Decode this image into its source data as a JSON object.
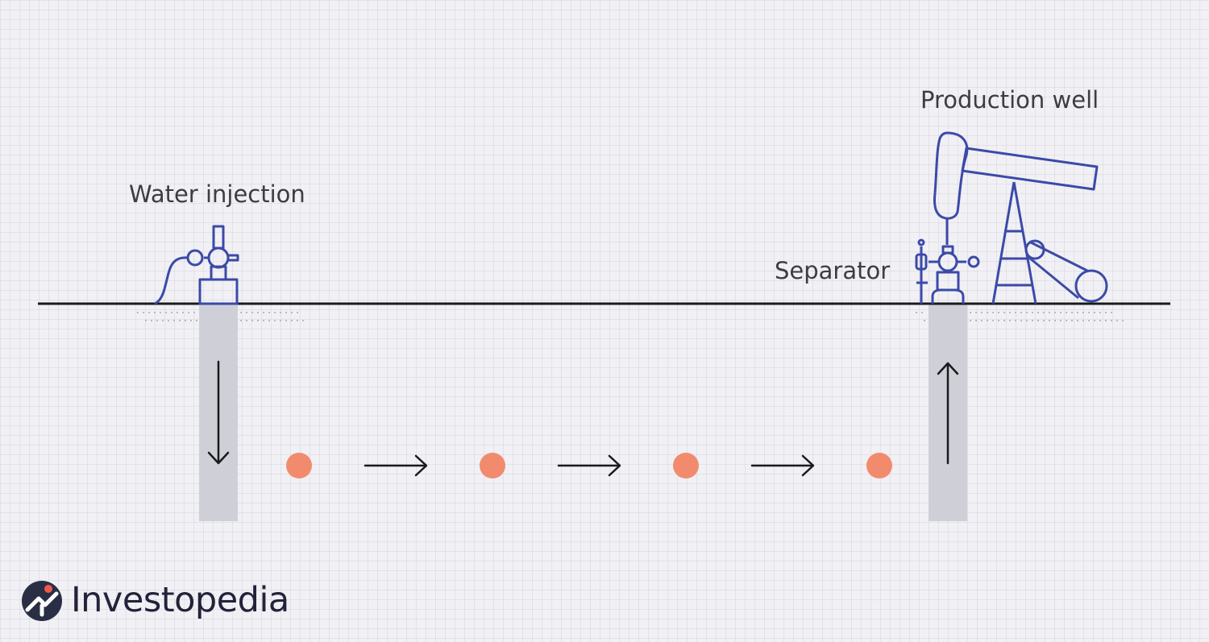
{
  "labels": {
    "water_injection": "Water injection",
    "production_well": "Production well",
    "separator": "Separator"
  },
  "brand": {
    "name": "Investopedia"
  },
  "colors": {
    "equipment": "#3b4aa8",
    "oil_droplet": "#f28b6e",
    "wellbore": "#cfcfd8",
    "ground": "#1a1a1a",
    "arrow": "#1a1a1a",
    "logo_badge": "#2a2e45",
    "logo_accent": "#ef5a4c"
  }
}
